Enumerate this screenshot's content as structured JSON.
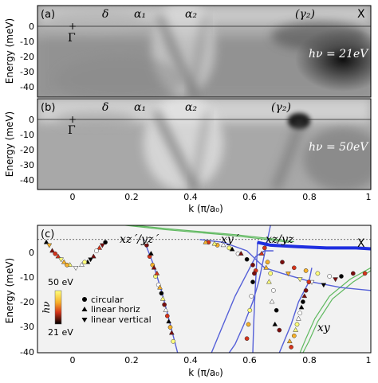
{
  "figure": {
    "panels": [
      {
        "panel_label": "(a)",
        "photon_label": "hν = 21eV",
        "band_labels": [
          "δ",
          "α₁",
          "α₂",
          "(γ₂)"
        ],
        "point_labels": [
          "Γ",
          "X"
        ],
        "ylabel": "Energy (meV)",
        "yticks": [
          0,
          -10,
          -20,
          -30,
          -40
        ],
        "ylim": [
          -45,
          5
        ]
      },
      {
        "panel_label": "(b)",
        "photon_label": "hν = 50eV",
        "band_labels": [
          "δ",
          "α₁",
          "α₂",
          "(γ₂)"
        ],
        "point_labels": [
          "Γ"
        ],
        "ylabel": "Energy (meV)",
        "yticks": [
          0,
          -10,
          -20,
          -30,
          -40
        ],
        "ylim": [
          -45,
          5
        ]
      }
    ],
    "top_xaxis": {
      "label": "k (π/a₀)",
      "ticks": [
        "0",
        "0.2",
        "0.4",
        "0.6",
        "0.8",
        "1"
      ],
      "xlim": [
        -0.13,
        1.0
      ]
    },
    "panel_c": {
      "panel_label": "(c)",
      "orbital_labels": [
        "xz´/yz´",
        "xy´",
        "xz/yz",
        "xy"
      ],
      "point_labels": [
        "X"
      ],
      "ylabel": "Energy (meV)",
      "xlabel": "k (π/a₀)",
      "yticks": [
        0,
        -10,
        -20,
        -30,
        -40
      ],
      "xticks": [
        "0",
        "0.2",
        "0.4",
        "0.6",
        "0.8",
        "1"
      ],
      "colorbar": {
        "symbol": "hν",
        "top_label": "50 eV",
        "bottom_label": "21 eV",
        "top_color": "#ffff7a",
        "bottom_color": "#000000"
      },
      "legend": [
        {
          "marker": "circle",
          "label": "circular"
        },
        {
          "marker": "triangle-up",
          "label": "linear horiz"
        },
        {
          "marker": "triangle-down",
          "label": "linear vertical"
        }
      ]
    }
  },
  "chart_data": {
    "type": "scatter",
    "xlabel": "k (π/a₀)",
    "ylabel": "Energy (meV)",
    "xlim": [
      -0.13,
      1.0
    ],
    "ylim": [
      -40,
      5
    ],
    "colors": {
      "band_blue": "#5560d8",
      "fermi_blue": "#1f2fe0",
      "green": "#3aaa3a",
      "faint_blue": "#8a95e8"
    },
    "dispersion_curves": [
      {
        "x": [
          0.23,
          0.26,
          0.29,
          0.32,
          0.345
        ],
        "y": [
          0,
          -8,
          -18,
          -30,
          -40
        ]
      },
      {
        "x": [
          0.46,
          0.5,
          0.54,
          0.58,
          0.61,
          0.64,
          0.67
        ],
        "y": [
          -40,
          -30,
          -20,
          -12,
          -6,
          -4,
          -4
        ]
      },
      {
        "x": [
          0.42,
          0.5,
          0.58,
          0.62,
          0.64,
          0.7,
          0.8,
          0.9,
          1.0
        ],
        "y": [
          0,
          -1,
          -4,
          -8,
          -10,
          -12,
          -15,
          -17,
          -18
        ]
      },
      {
        "x": [
          0.6,
          0.603,
          0.607,
          0.612,
          0.616
        ],
        "y": [
          -40,
          -30,
          -20,
          -10,
          -1
        ]
      },
      {
        "x": [
          0.8,
          0.79,
          0.755,
          0.73,
          0.71,
          0.69
        ],
        "y": [
          -10,
          -15,
          -22,
          -30,
          -35,
          -40
        ]
      },
      {
        "x": [
          0.66,
          0.64,
          0.62,
          0.6,
          0.57,
          0.54,
          0.52
        ],
        "y": [
          5,
          -5,
          -15,
          -22,
          -30,
          -37,
          -40
        ]
      }
    ],
    "thick_fermi_curve": {
      "x": [
        0.615,
        0.66,
        0.75,
        0.85,
        0.95,
        1.0
      ],
      "y": [
        -1,
        -2,
        -2.5,
        -3,
        -3,
        -3.3
      ]
    },
    "green_curves": [
      {
        "x": [
          0.08,
          0.3,
          0.52,
          0.65,
          0.72
        ],
        "y": [
          6,
          3.5,
          1.5,
          0,
          -1
        ]
      },
      {
        "x": [
          0.1,
          0.32,
          0.54,
          0.67,
          0.74
        ],
        "y": [
          6,
          3.7,
          1.7,
          0.2,
          -0.8
        ]
      },
      {
        "x": [
          1.0,
          0.93,
          0.86,
          0.81,
          0.78,
          0.76
        ],
        "y": [
          -10,
          -14,
          -20,
          -28,
          -35,
          -40
        ]
      },
      {
        "x": [
          1.0,
          0.94,
          0.87,
          0.82,
          0.79,
          0.77
        ],
        "y": [
          -11,
          -15,
          -21,
          -29,
          -36,
          -40
        ]
      }
    ],
    "series": [
      {
        "marker": "triangle-up",
        "x": [
          -0.1,
          -0.08,
          -0.06,
          -0.04,
          -0.02,
          0.02,
          0.04,
          0.06,
          0.08
        ],
        "y": [
          -1,
          -4,
          -6,
          -8,
          -9,
          -9,
          -8,
          -6,
          -3
        ]
      },
      {
        "marker": "triangle-down",
        "x": [
          -0.09,
          -0.05,
          0.0,
          0.05,
          0.09
        ],
        "y": [
          -2,
          -7,
          -10,
          -7,
          -2
        ]
      },
      {
        "marker": "circle",
        "x": [
          -0.07,
          -0.03,
          0.03,
          0.07,
          0.1
        ],
        "y": [
          -5,
          -9,
          -8,
          -4,
          -1
        ]
      },
      {
        "marker": "circle",
        "x": [
          0.24,
          0.25,
          0.26,
          0.27,
          0.28,
          0.29,
          0.3,
          0.31,
          0.32,
          0.33
        ],
        "y": [
          -2,
          -6,
          -9,
          -13,
          -16,
          -19,
          -23,
          -27,
          -31,
          -36
        ]
      },
      {
        "marker": "triangle-up",
        "x": [
          0.235,
          0.255,
          0.265,
          0.275,
          0.285,
          0.295,
          0.305,
          0.315,
          0.325
        ],
        "y": [
          -1,
          -5,
          -10,
          -12,
          -17,
          -21,
          -25,
          -29,
          -33
        ]
      },
      {
        "marker": "circle",
        "x": [
          0.45,
          0.48,
          0.52,
          0.55,
          0.58,
          0.6,
          0.61
        ],
        "y": [
          -1,
          -2,
          -3,
          -5,
          -7,
          -9,
          -11
        ]
      },
      {
        "marker": "triangle-up",
        "x": [
          0.44,
          0.47,
          0.5,
          0.53,
          0.56
        ],
        "y": [
          -1,
          -1.5,
          -2,
          -3.5,
          -5
        ]
      },
      {
        "marker": "circle",
        "x": [
          0.58,
          0.585,
          0.59,
          0.595,
          0.6,
          0.605
        ],
        "y": [
          -35,
          -30,
          -25,
          -20,
          -15,
          -12
        ]
      },
      {
        "marker": "circle",
        "x": [
          0.64,
          0.65,
          0.66,
          0.67,
          0.68,
          0.69
        ],
        "y": [
          -3,
          -8,
          -12,
          -18,
          -25,
          -32
        ]
      },
      {
        "marker": "triangle-up",
        "x": [
          0.63,
          0.645,
          0.655,
          0.665,
          0.675
        ],
        "y": [
          -5,
          -10,
          -15,
          -22,
          -30
        ]
      },
      {
        "marker": "circle",
        "x": [
          0.7,
          0.74,
          0.78,
          0.82,
          0.86,
          0.9,
          0.94,
          0.98
        ],
        "y": [
          -8,
          -10,
          -11,
          -12,
          -13,
          -13,
          -12,
          -12
        ]
      },
      {
        "marker": "triangle-down",
        "x": [
          0.72,
          0.76,
          0.8,
          0.84,
          0.88
        ],
        "y": [
          -12,
          -14,
          -15,
          -16,
          -14
        ]
      },
      {
        "marker": "circle",
        "x": [
          0.73,
          0.74,
          0.75,
          0.76,
          0.77,
          0.78,
          0.79
        ],
        "y": [
          -38,
          -34,
          -30,
          -26,
          -22,
          -18,
          -15
        ]
      },
      {
        "marker": "triangle-up",
        "x": [
          0.725,
          0.745,
          0.755,
          0.765,
          0.775
        ],
        "y": [
          -36,
          -32,
          -28,
          -24,
          -20
        ]
      }
    ]
  }
}
